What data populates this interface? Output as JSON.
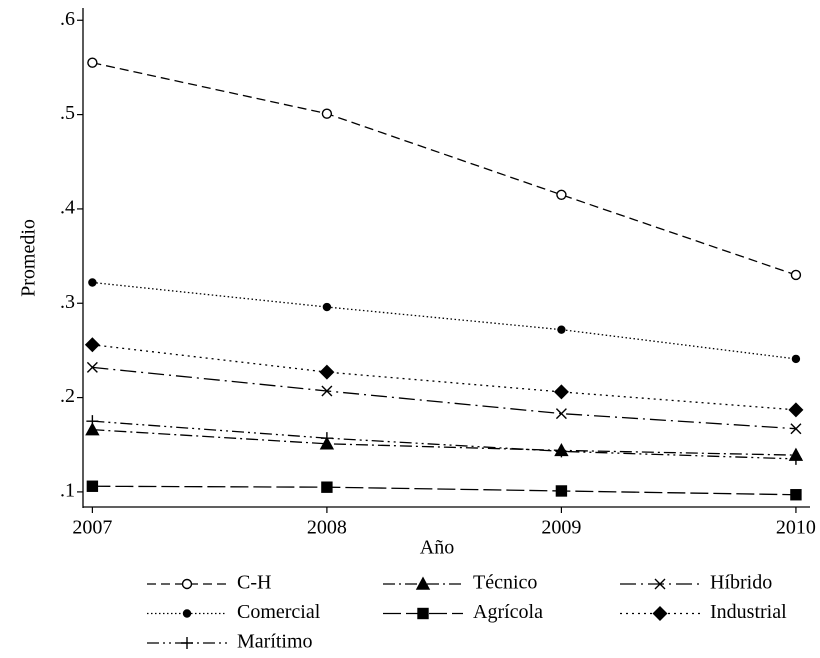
{
  "chart_data": {
    "type": "line",
    "xlabel": "Año",
    "ylabel": "Promedio",
    "x": [
      2007,
      2008,
      2009,
      2010
    ],
    "xlim": [
      2006.96,
      2010.06
    ],
    "xticks": [
      2007,
      2008,
      2009,
      2010
    ],
    "ylim": [
      0.084,
      0.613
    ],
    "yticks": [
      {
        "value": 0.1,
        "label": ".1"
      },
      {
        "value": 0.2,
        "label": ".2"
      },
      {
        "value": 0.3,
        "label": ".3"
      },
      {
        "value": 0.4,
        "label": ".4"
      },
      {
        "value": 0.5,
        "label": ".5"
      },
      {
        "value": 0.6,
        "label": ".6"
      }
    ],
    "series": [
      {
        "name": "C-H",
        "color": "#000000",
        "values": [
          0.555,
          0.501,
          0.415,
          0.33
        ]
      },
      {
        "name": "Técnico",
        "color": "#000000",
        "values": [
          0.166,
          0.151,
          0.144,
          0.139
        ]
      },
      {
        "name": "Híbrido",
        "color": "#000000",
        "values": [
          0.232,
          0.207,
          0.183,
          0.167
        ]
      },
      {
        "name": "Comercial",
        "color": "#000000",
        "values": [
          0.322,
          0.296,
          0.272,
          0.241
        ]
      },
      {
        "name": "Agrícola",
        "color": "#000000",
        "values": [
          0.106,
          0.105,
          0.101,
          0.097
        ]
      },
      {
        "name": "Industrial",
        "color": "#000000",
        "values": [
          0.256,
          0.227,
          0.206,
          0.187
        ]
      },
      {
        "name": "Marítimo",
        "color": "#000000",
        "values": [
          0.175,
          0.157,
          0.143,
          0.135
        ]
      }
    ]
  }
}
